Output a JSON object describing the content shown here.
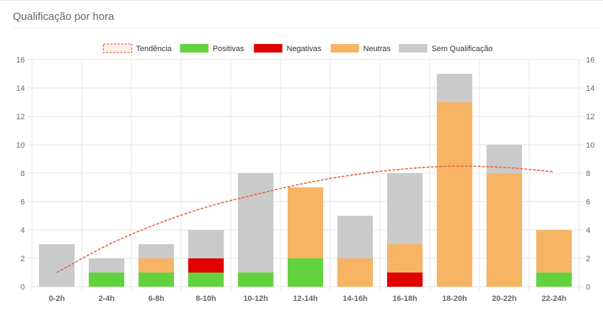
{
  "card": {
    "title": "Qualificação por hora"
  },
  "colors": {
    "positivas": "#62d33f",
    "negativas": "#df0000",
    "neutras": "#f6b464",
    "sem": "#cacaca",
    "trend": "#e8603c",
    "grid": "#e6e6e6",
    "tick": "#666666"
  },
  "chart_data": {
    "type": "bar",
    "stacked": true,
    "categories": [
      "0-2h",
      "2-4h",
      "6-8h",
      "8-10h",
      "10-12h",
      "12-14h",
      "14-16h",
      "16-18h",
      "18-20h",
      "20-22h",
      "22-24h"
    ],
    "series": [
      {
        "name": "Positivas",
        "color": "#62d33f",
        "values": [
          0,
          1,
          1,
          1,
          1,
          2,
          0,
          0,
          0,
          0,
          1
        ]
      },
      {
        "name": "Negativas",
        "color": "#df0000",
        "values": [
          0,
          0,
          0,
          1,
          0,
          0,
          0,
          1,
          0,
          0,
          0
        ]
      },
      {
        "name": "Neutras",
        "color": "#f6b464",
        "values": [
          0,
          0,
          1,
          0,
          0,
          5,
          2,
          2,
          13,
          8,
          3
        ]
      },
      {
        "name": "Sem Qualificação",
        "color": "#cacaca",
        "values": [
          3,
          1,
          1,
          2,
          7,
          0,
          3,
          5,
          2,
          2,
          0
        ]
      }
    ],
    "trend": {
      "name": "Tendência",
      "color": "#e8603c",
      "values": [
        1,
        2.9,
        4.4,
        5.6,
        6.5,
        7.3,
        7.9,
        8.3,
        8.5,
        8.4,
        8.1
      ]
    },
    "legend_order": [
      "Tendência",
      "Positivas",
      "Negativas",
      "Neutras",
      "Sem Qualificação"
    ],
    "legend_position": "top",
    "ylim": [
      0,
      16
    ],
    "yticks": [
      0,
      2,
      4,
      6,
      8,
      10,
      12,
      14,
      16
    ],
    "grid": true,
    "secondary_y_axis": true,
    "title": "",
    "xlabel": "",
    "ylabel": ""
  }
}
